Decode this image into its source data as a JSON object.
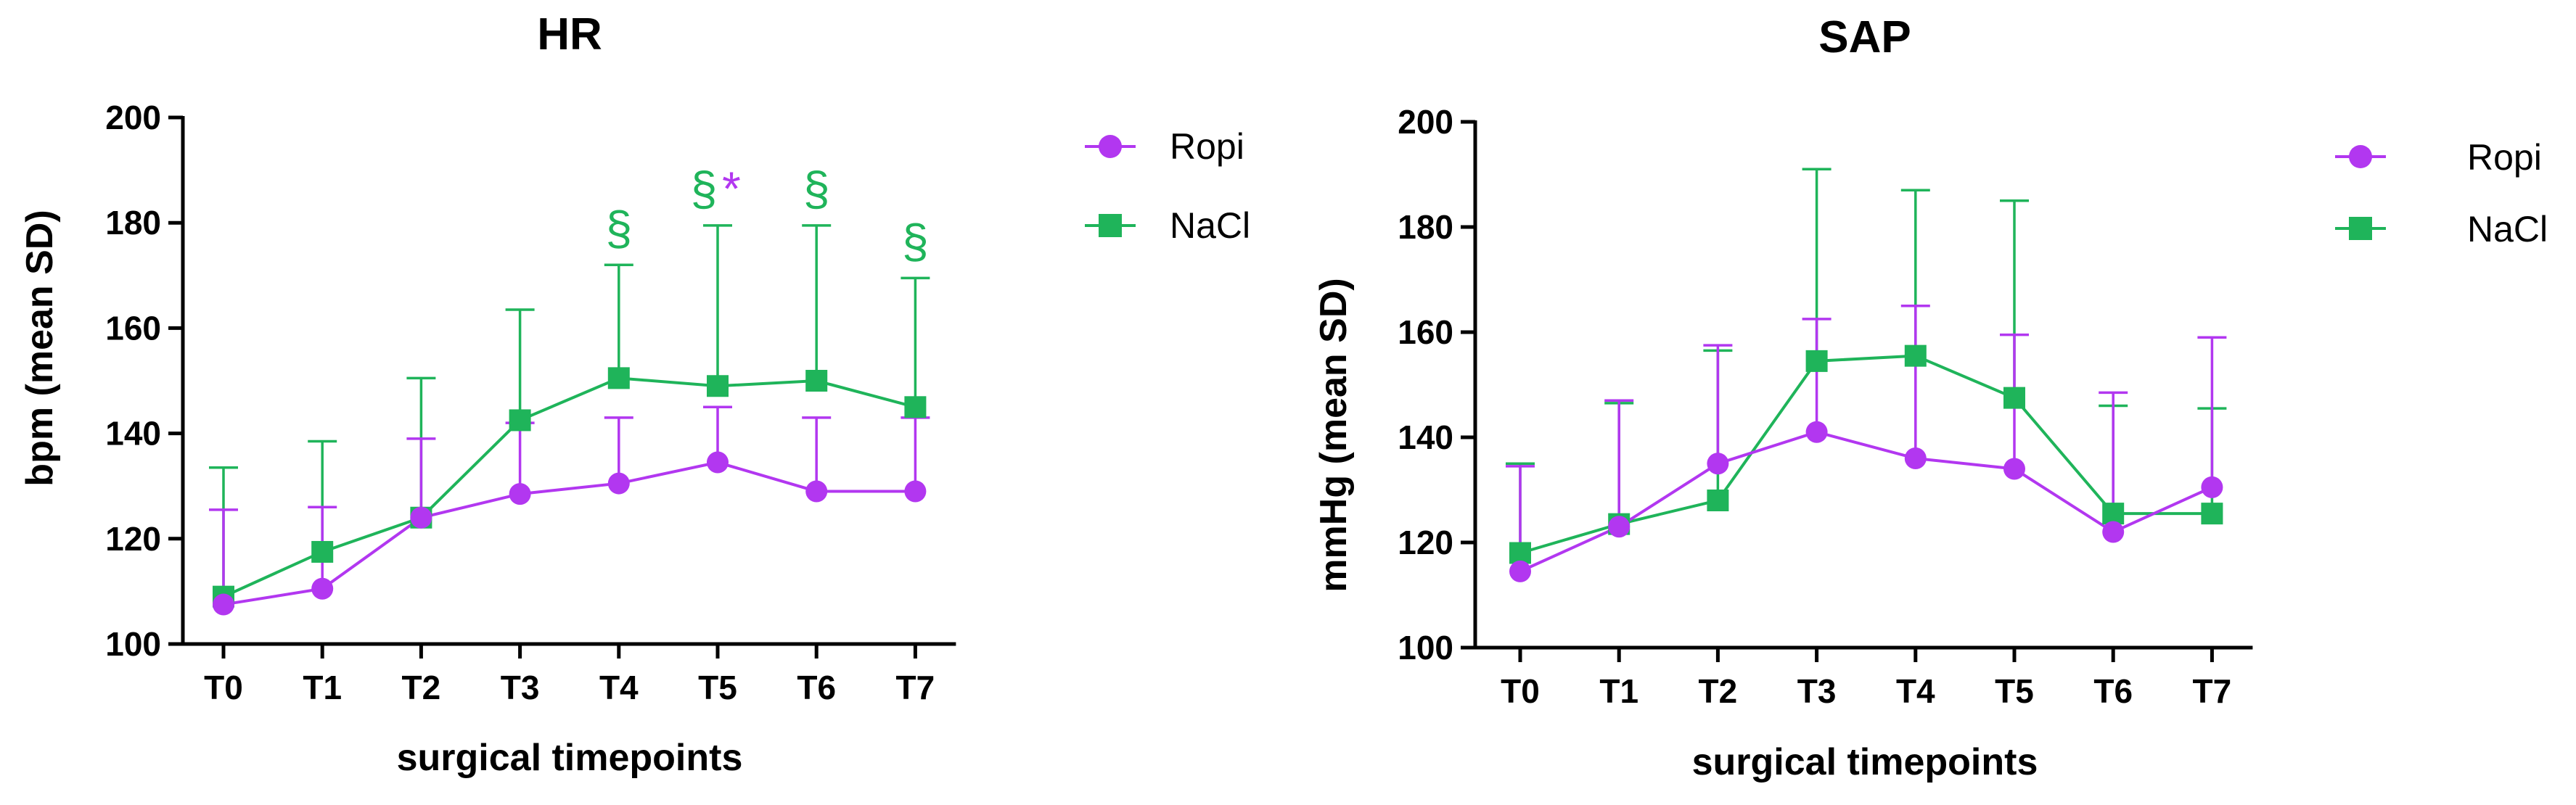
{
  "colors": {
    "ropi": "#b237f0",
    "nacl": "#1fb45a",
    "axis": "#000000"
  },
  "chart_data": [
    {
      "type": "line",
      "title": "HR",
      "xlabel": "surgical timepoints",
      "ylabel": "bpm (mean SD)",
      "ylim": [
        100,
        200
      ],
      "yticks": [
        "100",
        "120",
        "140",
        "160",
        "180",
        "200"
      ],
      "categories": [
        "T0",
        "T1",
        "T2",
        "T3",
        "T4",
        "T5",
        "T6",
        "T7"
      ],
      "legend": {
        "position": "right",
        "entries": [
          "Ropi",
          "NaCl"
        ]
      },
      "series": [
        {
          "name": "Ropi",
          "marker": "circle",
          "values": [
            107.5,
            110.5,
            124,
            128.5,
            130.5,
            134.5,
            129,
            129
          ],
          "error_upper": [
            125.5,
            126,
            139,
            142,
            143,
            145,
            143,
            143
          ]
        },
        {
          "name": "NaCl",
          "marker": "square",
          "values": [
            109,
            117.5,
            124,
            142.5,
            150.5,
            149,
            150,
            145
          ],
          "error_upper": [
            133.5,
            138.5,
            150.5,
            163.5,
            172,
            179.5,
            179.5,
            169.5
          ]
        }
      ],
      "annotations": [
        {
          "category": "T4",
          "texts": [
            {
              "text": "§",
              "series": "NaCl"
            }
          ]
        },
        {
          "category": "T5",
          "texts": [
            {
              "text": "§",
              "series": "NaCl"
            },
            {
              "text": "*",
              "series": "Ropi"
            }
          ]
        },
        {
          "category": "T6",
          "texts": [
            {
              "text": "§",
              "series": "NaCl"
            }
          ]
        },
        {
          "category": "T7",
          "texts": [
            {
              "text": "§",
              "series": "NaCl"
            }
          ]
        }
      ]
    },
    {
      "type": "line",
      "title": "SAP",
      "xlabel": "surgical timepoints",
      "ylabel": "mmHg (mean SD)",
      "ylim": [
        100,
        200
      ],
      "yticks": [
        "100",
        "120",
        "140",
        "160",
        "180",
        "200"
      ],
      "categories": [
        "T0",
        "T1",
        "T2",
        "T3",
        "T4",
        "T5",
        "T6",
        "T7"
      ],
      "legend": {
        "position": "right",
        "entries": [
          "Ropi",
          "NaCl"
        ]
      },
      "series": [
        {
          "name": "Ropi",
          "marker": "circle",
          "values": [
            114.5,
            123,
            135,
            141,
            136,
            134,
            122,
            130.5
          ],
          "error_upper": [
            134.5,
            147,
            157.5,
            162.5,
            165,
            159.5,
            148.5,
            159
          ]
        },
        {
          "name": "NaCl",
          "marker": "square",
          "values": [
            118,
            123.5,
            128,
            154.5,
            155.5,
            147.5,
            125.5,
            125.5
          ],
          "error_upper": [
            135,
            146.5,
            156.5,
            191,
            187,
            185,
            146,
            145.5
          ]
        }
      ],
      "annotations": []
    }
  ]
}
